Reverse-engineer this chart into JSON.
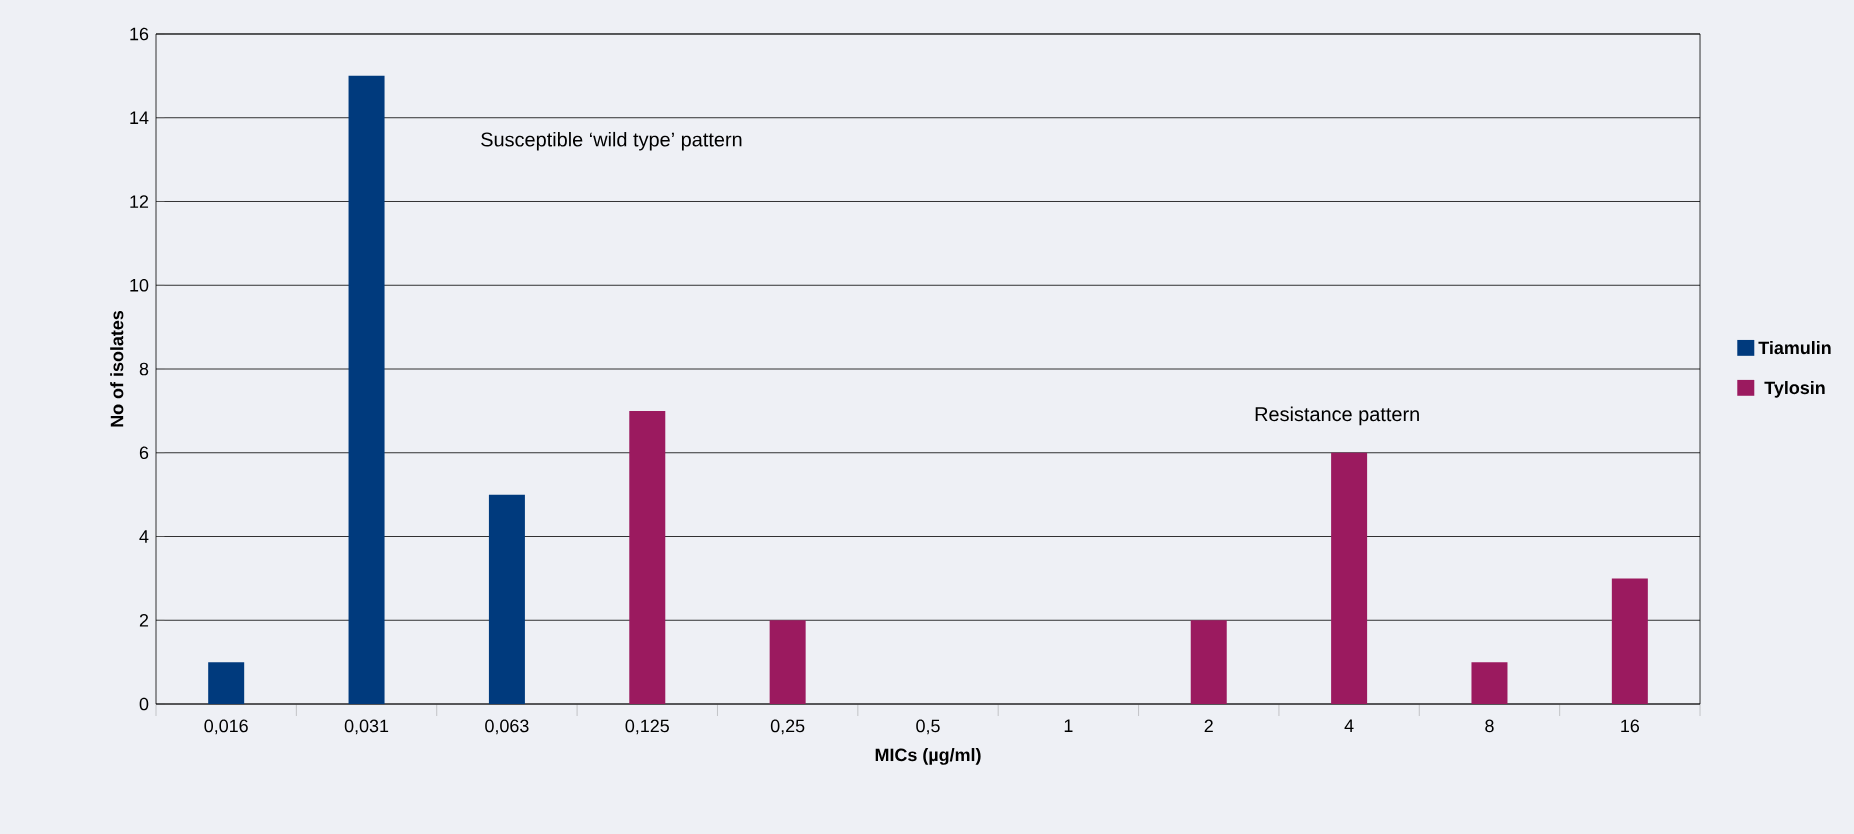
{
  "chart_data": {
    "type": "bar",
    "xlabel": "MICs (µg/ml)",
    "ylabel": "No of isolates",
    "categories": [
      "0,016",
      "0,031",
      "0,063",
      "0,125",
      "0,25",
      "0,5",
      "1",
      "2",
      "4",
      "8",
      "16"
    ],
    "series": [
      {
        "name": "Tiamulin",
        "color": "#003a7d",
        "values": [
          1,
          15,
          5,
          null,
          null,
          null,
          null,
          null,
          null,
          null,
          null
        ]
      },
      {
        "name": "Tylosin",
        "color": "#9b1a5f",
        "values": [
          null,
          null,
          null,
          7,
          2,
          null,
          null,
          2,
          6,
          1,
          3
        ]
      }
    ],
    "ylim": [
      0,
      16
    ],
    "yticks": [
      0,
      2,
      4,
      6,
      8,
      10,
      12,
      14,
      16
    ],
    "grid": "y",
    "legend": "right",
    "annotations": [
      "Susceptible ‘wild type’ pattern",
      "Resistance pattern"
    ]
  }
}
